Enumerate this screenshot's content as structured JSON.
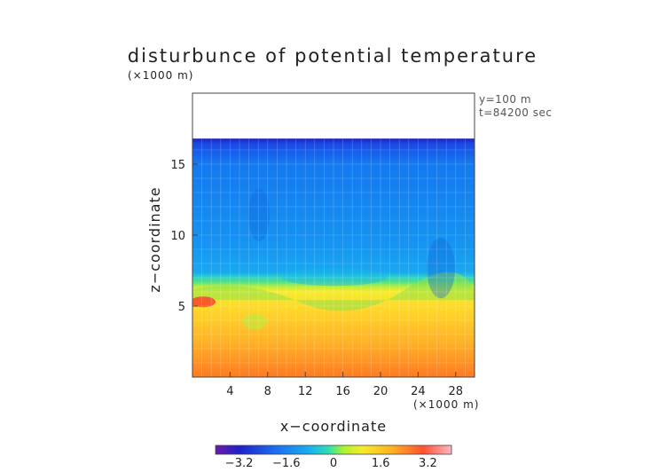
{
  "chart_data": {
    "type": "heatmap",
    "title": "disturbunce of potential temperature",
    "xlabel": "x−coordinate",
    "ylabel": "z−coordinate",
    "x_unit": "(×1000 m)",
    "y_unit": "(×1000 m)",
    "xlim": [
      0,
      30
    ],
    "ylim": [
      0,
      20
    ],
    "x_ticks": [
      4,
      8,
      12,
      16,
      20,
      24,
      28
    ],
    "x_tick_labels": [
      "4",
      "8",
      "12",
      "16",
      "20",
      "24",
      "28"
    ],
    "y_ticks": [
      5,
      10,
      15
    ],
    "y_tick_labels": [
      "5",
      "10",
      "15"
    ],
    "annotations": [
      "y=100 m",
      "t=84200 sec"
    ],
    "colorbar": {
      "range": [
        -4,
        4
      ],
      "ticks": [
        -3.2,
        -1.6,
        0,
        1.6,
        3.2
      ],
      "tick_labels": [
        "−3.2",
        "−1.6",
        "0",
        "1.6",
        "3.2"
      ]
    },
    "field_top_z": 16.8,
    "inversion_z": 5.8,
    "grid": true
  }
}
